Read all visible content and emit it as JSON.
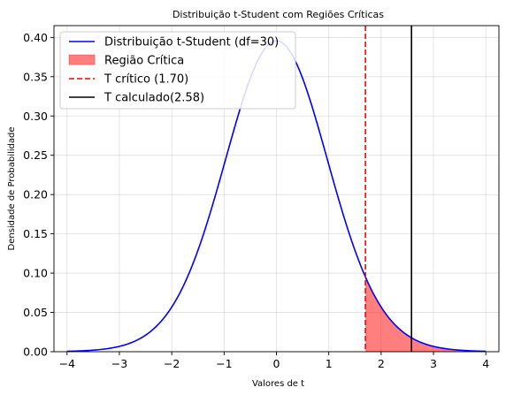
{
  "chart_data": {
    "type": "line",
    "title": "Distribuição t-Student com Regiões Críticas",
    "xlabel": "Valores de t",
    "ylabel": "Densidade de Probabilidade",
    "xlim": [
      -4.25,
      4.25
    ],
    "ylim": [
      0,
      0.415
    ],
    "grid": true,
    "legend_position": "top-left",
    "df": 30,
    "xticks": [
      -4,
      -3,
      -2,
      -1,
      0,
      1,
      2,
      3,
      4
    ],
    "xtick_labels": [
      "−4",
      "−3",
      "−2",
      "−1",
      "0",
      "1",
      "2",
      "3",
      "4"
    ],
    "yticks": [
      0.0,
      0.05,
      0.1,
      0.15,
      0.2,
      0.25,
      0.3,
      0.35,
      0.4
    ],
    "ytick_labels": [
      "0.00",
      "0.05",
      "0.10",
      "0.15",
      "0.20",
      "0.25",
      "0.30",
      "0.35",
      "0.40"
    ],
    "series": [
      {
        "name": "Distribuição t-Student (df=30)",
        "kind": "line",
        "color": "#0000ff",
        "x_range": [
          -4,
          4
        ]
      },
      {
        "name": "Região Crítica",
        "kind": "area",
        "color": "#ff0000",
        "opacity": 0.5,
        "x_range": [
          1.7,
          4
        ]
      },
      {
        "name": "T crítico (1.70)",
        "kind": "vline",
        "x": 1.7,
        "color": "#ff0000",
        "dashed": true
      },
      {
        "name": "T calculado(2.58)",
        "kind": "vline",
        "x": 2.58,
        "color": "#000000",
        "dashed": false
      }
    ]
  }
}
